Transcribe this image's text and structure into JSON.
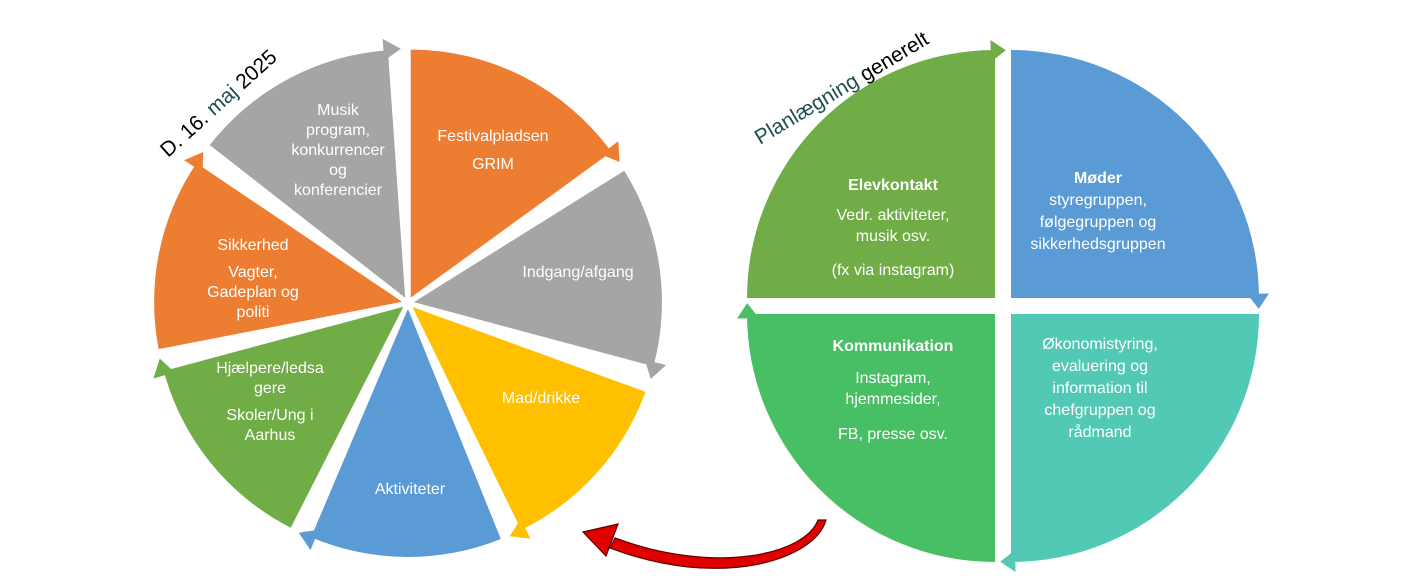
{
  "colors": {
    "orange": "#ED7D31",
    "gray": "#A5A5A5",
    "yellow": "#FFC000",
    "blue": "#5B9BD5",
    "green": "#70AD47",
    "green_light": "#48BF64",
    "teal": "#52C9B5",
    "red_arrow": "#E00000",
    "dark_teal": "#1F4E4E"
  },
  "left_cycle": {
    "label": {
      "part1": "D. 16. ",
      "part2": "maj",
      "part3": " 2025"
    },
    "segments": [
      {
        "lines": [
          "Festivalpladsen",
          "GRIM"
        ]
      },
      {
        "lines": [
          "Indgang/afgang"
        ]
      },
      {
        "lines": [
          "Mad/drikke"
        ]
      },
      {
        "lines": [
          "Aktiviteter"
        ]
      },
      {
        "lines": [
          "Hjælpere/ledsa",
          "gere",
          "Skoler/Ung i",
          "Aarhus"
        ]
      },
      {
        "lines": [
          "Sikkerhed",
          "Vagter,",
          "Gadeplan og",
          "politi"
        ]
      },
      {
        "lines": [
          "Musik",
          "program,",
          "konkurrencer",
          "og",
          "konferencier"
        ]
      }
    ]
  },
  "right_cycle": {
    "label": {
      "part1": "Planlægning",
      "part2": " generelt"
    },
    "quadrants": [
      {
        "title": "Elevkontakt",
        "lines": [
          "Vedr. aktiviteter,",
          "musik osv.",
          "(fx via instagram)"
        ]
      },
      {
        "title": "Møder",
        "lines": [
          "styregruppen,",
          "følgegruppen og",
          "sikkerhedsgruppen"
        ]
      },
      {
        "title": "Kommunikation",
        "lines": [
          "Instagram,",
          "hjemmesider,",
          "FB, presse osv."
        ]
      },
      {
        "title": "",
        "lines": [
          "Økonomistyring,",
          "evaluering og",
          "information til",
          "chefgruppen og",
          "rådmand"
        ]
      }
    ]
  }
}
